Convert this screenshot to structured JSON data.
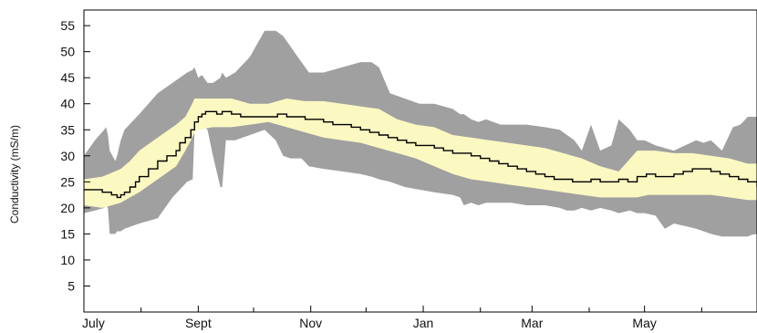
{
  "chart_data": {
    "type": "area",
    "title": "",
    "xlabel": "",
    "ylabel": "Conductivity (mS/m)",
    "ylim": [
      0,
      58
    ],
    "y_ticks": [
      5,
      10,
      15,
      20,
      25,
      30,
      35,
      40,
      45,
      50,
      55
    ],
    "x_domain_days": [
      0,
      365
    ],
    "x_month_labels": [
      {
        "label": "July",
        "day": 0
      },
      {
        "label": "Sept",
        "day": 62
      },
      {
        "label": "Nov",
        "day": 123
      },
      {
        "label": "Jan",
        "day": 184
      },
      {
        "label": "Mar",
        "day": 243
      },
      {
        "label": "May",
        "day": 304
      }
    ],
    "x_minor_tick_days": [
      31,
      92,
      153,
      215,
      274,
      335
    ],
    "grid": false,
    "colors": {
      "range_band": "#a0a0a0",
      "iqr_band": "#fbf8c2",
      "median_line": "#000000",
      "axis": "#000000"
    },
    "series": [
      {
        "kind": "band",
        "x": [
          0,
          6,
          11,
          12,
          13,
          14,
          17,
          18,
          20,
          22,
          30,
          40,
          48,
          56,
          59,
          60,
          62,
          64,
          67,
          70,
          74,
          75,
          77,
          82,
          90,
          98,
          104,
          108,
          112,
          114,
          116,
          118,
          122,
          130,
          140,
          150,
          156,
          160,
          166,
          174,
          182,
          190,
          200,
          204,
          206,
          210,
          214,
          218,
          222,
          226,
          232,
          240,
          250,
          258,
          262,
          266,
          270,
          275,
          280,
          286,
          290,
          296,
          300,
          304,
          310,
          315,
          320,
          326,
          332,
          336,
          340,
          346,
          352,
          356,
          360,
          362,
          365
        ],
        "lower": [
          19,
          19.5,
          20,
          20.5,
          20,
          15,
          15,
          15.5,
          15.5,
          16,
          17,
          18,
          22,
          25,
          25.5,
          35,
          36,
          36,
          35,
          30,
          24,
          24,
          33,
          33,
          34,
          35,
          33,
          30,
          29.5,
          29.5,
          29.5,
          29.5,
          28,
          27.5,
          27,
          26.5,
          26,
          25.5,
          25,
          24,
          23.5,
          23,
          22.5,
          22,
          20.5,
          21,
          20.5,
          21,
          21,
          21,
          21,
          20.5,
          20.5,
          20,
          19.5,
          19.5,
          20,
          19.5,
          20,
          19.5,
          19,
          19.5,
          19,
          19,
          18.5,
          16,
          17,
          16.5,
          16,
          15.5,
          15,
          14.5,
          14.5,
          14.5,
          14.5,
          14.8,
          15
        ],
        "upper": [
          30,
          33,
          35,
          35.5,
          34,
          31,
          29,
          30,
          33,
          35,
          38,
          42,
          44,
          46,
          46.5,
          47,
          45,
          45.5,
          44,
          44,
          45,
          46,
          45,
          46,
          49,
          54,
          54,
          53,
          51,
          50,
          49,
          48,
          46,
          46,
          47,
          48,
          48,
          47,
          42,
          41,
          40,
          40,
          39,
          38,
          38,
          37,
          36.5,
          37,
          36.5,
          36,
          36,
          36,
          35.5,
          35,
          34,
          33,
          31,
          36,
          31,
          32,
          37,
          35,
          33,
          33,
          32,
          31.5,
          31,
          32,
          33,
          32.5,
          33,
          31,
          35.5,
          36,
          37.5,
          37.5,
          37.5
        ]
      },
      {
        "kind": "band",
        "x": [
          0,
          10,
          20,
          25,
          30,
          40,
          50,
          55,
          58,
          60,
          62,
          70,
          80,
          90,
          100,
          110,
          120,
          130,
          140,
          150,
          160,
          170,
          180,
          190,
          200,
          210,
          220,
          230,
          240,
          250,
          260,
          270,
          280,
          290,
          295,
          300,
          306,
          310,
          320,
          330,
          340,
          350,
          360,
          362,
          365
        ],
        "lower": [
          20.5,
          20,
          21,
          22,
          23,
          25.5,
          28,
          31,
          33,
          34.5,
          35,
          35.5,
          35.5,
          36,
          36.5,
          35.5,
          34.5,
          33.5,
          33,
          32.5,
          31.5,
          30.5,
          29.5,
          28,
          26.5,
          25.5,
          25,
          24.5,
          24,
          23.5,
          23,
          22.5,
          22,
          22,
          22,
          22,
          22.5,
          22.5,
          22.5,
          22.5,
          22.5,
          22,
          21.5,
          21.5,
          21.5
        ],
        "upper": [
          25.5,
          26,
          27.5,
          29,
          31,
          33.5,
          36,
          37.5,
          39.5,
          41,
          41,
          41,
          41,
          40,
          40,
          41,
          40.5,
          40.5,
          40,
          39.5,
          39,
          37,
          36,
          35.5,
          34,
          33.5,
          33,
          32.5,
          32,
          31.5,
          30.5,
          29.5,
          28,
          27,
          29,
          31,
          31,
          31,
          30.5,
          30.5,
          30,
          29.5,
          28.5,
          28.5,
          28.5
        ]
      },
      {
        "kind": "line",
        "x": [
          0,
          5,
          10,
          15,
          18,
          20,
          22,
          25,
          28,
          30,
          35,
          40,
          45,
          50,
          52,
          55,
          58,
          60,
          62,
          64,
          66,
          68,
          70,
          72,
          75,
          80,
          85,
          90,
          95,
          100,
          105,
          110,
          115,
          120,
          125,
          130,
          135,
          140,
          145,
          150,
          155,
          160,
          165,
          170,
          175,
          180,
          185,
          190,
          195,
          200,
          205,
          210,
          215,
          220,
          225,
          230,
          235,
          240,
          245,
          250,
          255,
          260,
          265,
          270,
          275,
          280,
          285,
          290,
          295,
          300,
          305,
          310,
          315,
          320,
          325,
          330,
          335,
          340,
          345,
          350,
          355,
          360,
          365
        ],
        "values": [
          23.5,
          23.5,
          23,
          22.5,
          22,
          22.5,
          23,
          24,
          25,
          26,
          27.5,
          29,
          30,
          31,
          32.5,
          33.5,
          35,
          36.5,
          37.5,
          38,
          38.5,
          38.5,
          38.5,
          38,
          38.5,
          38,
          37.5,
          37.5,
          37.5,
          37.5,
          38,
          37.5,
          37.5,
          37,
          37,
          36.5,
          36,
          36,
          35.5,
          35,
          34.5,
          34,
          33.5,
          33,
          32.5,
          32,
          32,
          31.5,
          31,
          30.5,
          30.5,
          30,
          29.5,
          29,
          28.5,
          28,
          27.5,
          27,
          26.5,
          26,
          25.5,
          25.5,
          25,
          25,
          25.5,
          25,
          25,
          25.5,
          25,
          26,
          26.5,
          26,
          26,
          26.5,
          27,
          27.5,
          27.5,
          27,
          26.5,
          26,
          25.5,
          25,
          24
        ]
      }
    ]
  }
}
